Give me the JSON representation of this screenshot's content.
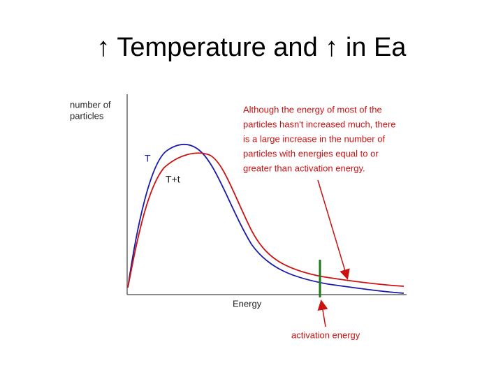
{
  "title": "↑ Temperature and ↑ in Ea",
  "y_axis_label": [
    "number of",
    "particles"
  ],
  "x_axis_label": "Energy",
  "curve_labels": [
    "T",
    "T+t"
  ],
  "annotation": [
    "Although the energy of most of the",
    "particles hasn't increased much, there",
    "is a large increase in the number of",
    "particles with energies equal to or",
    "greater than activation energy."
  ],
  "activation_label": "activation energy"
}
